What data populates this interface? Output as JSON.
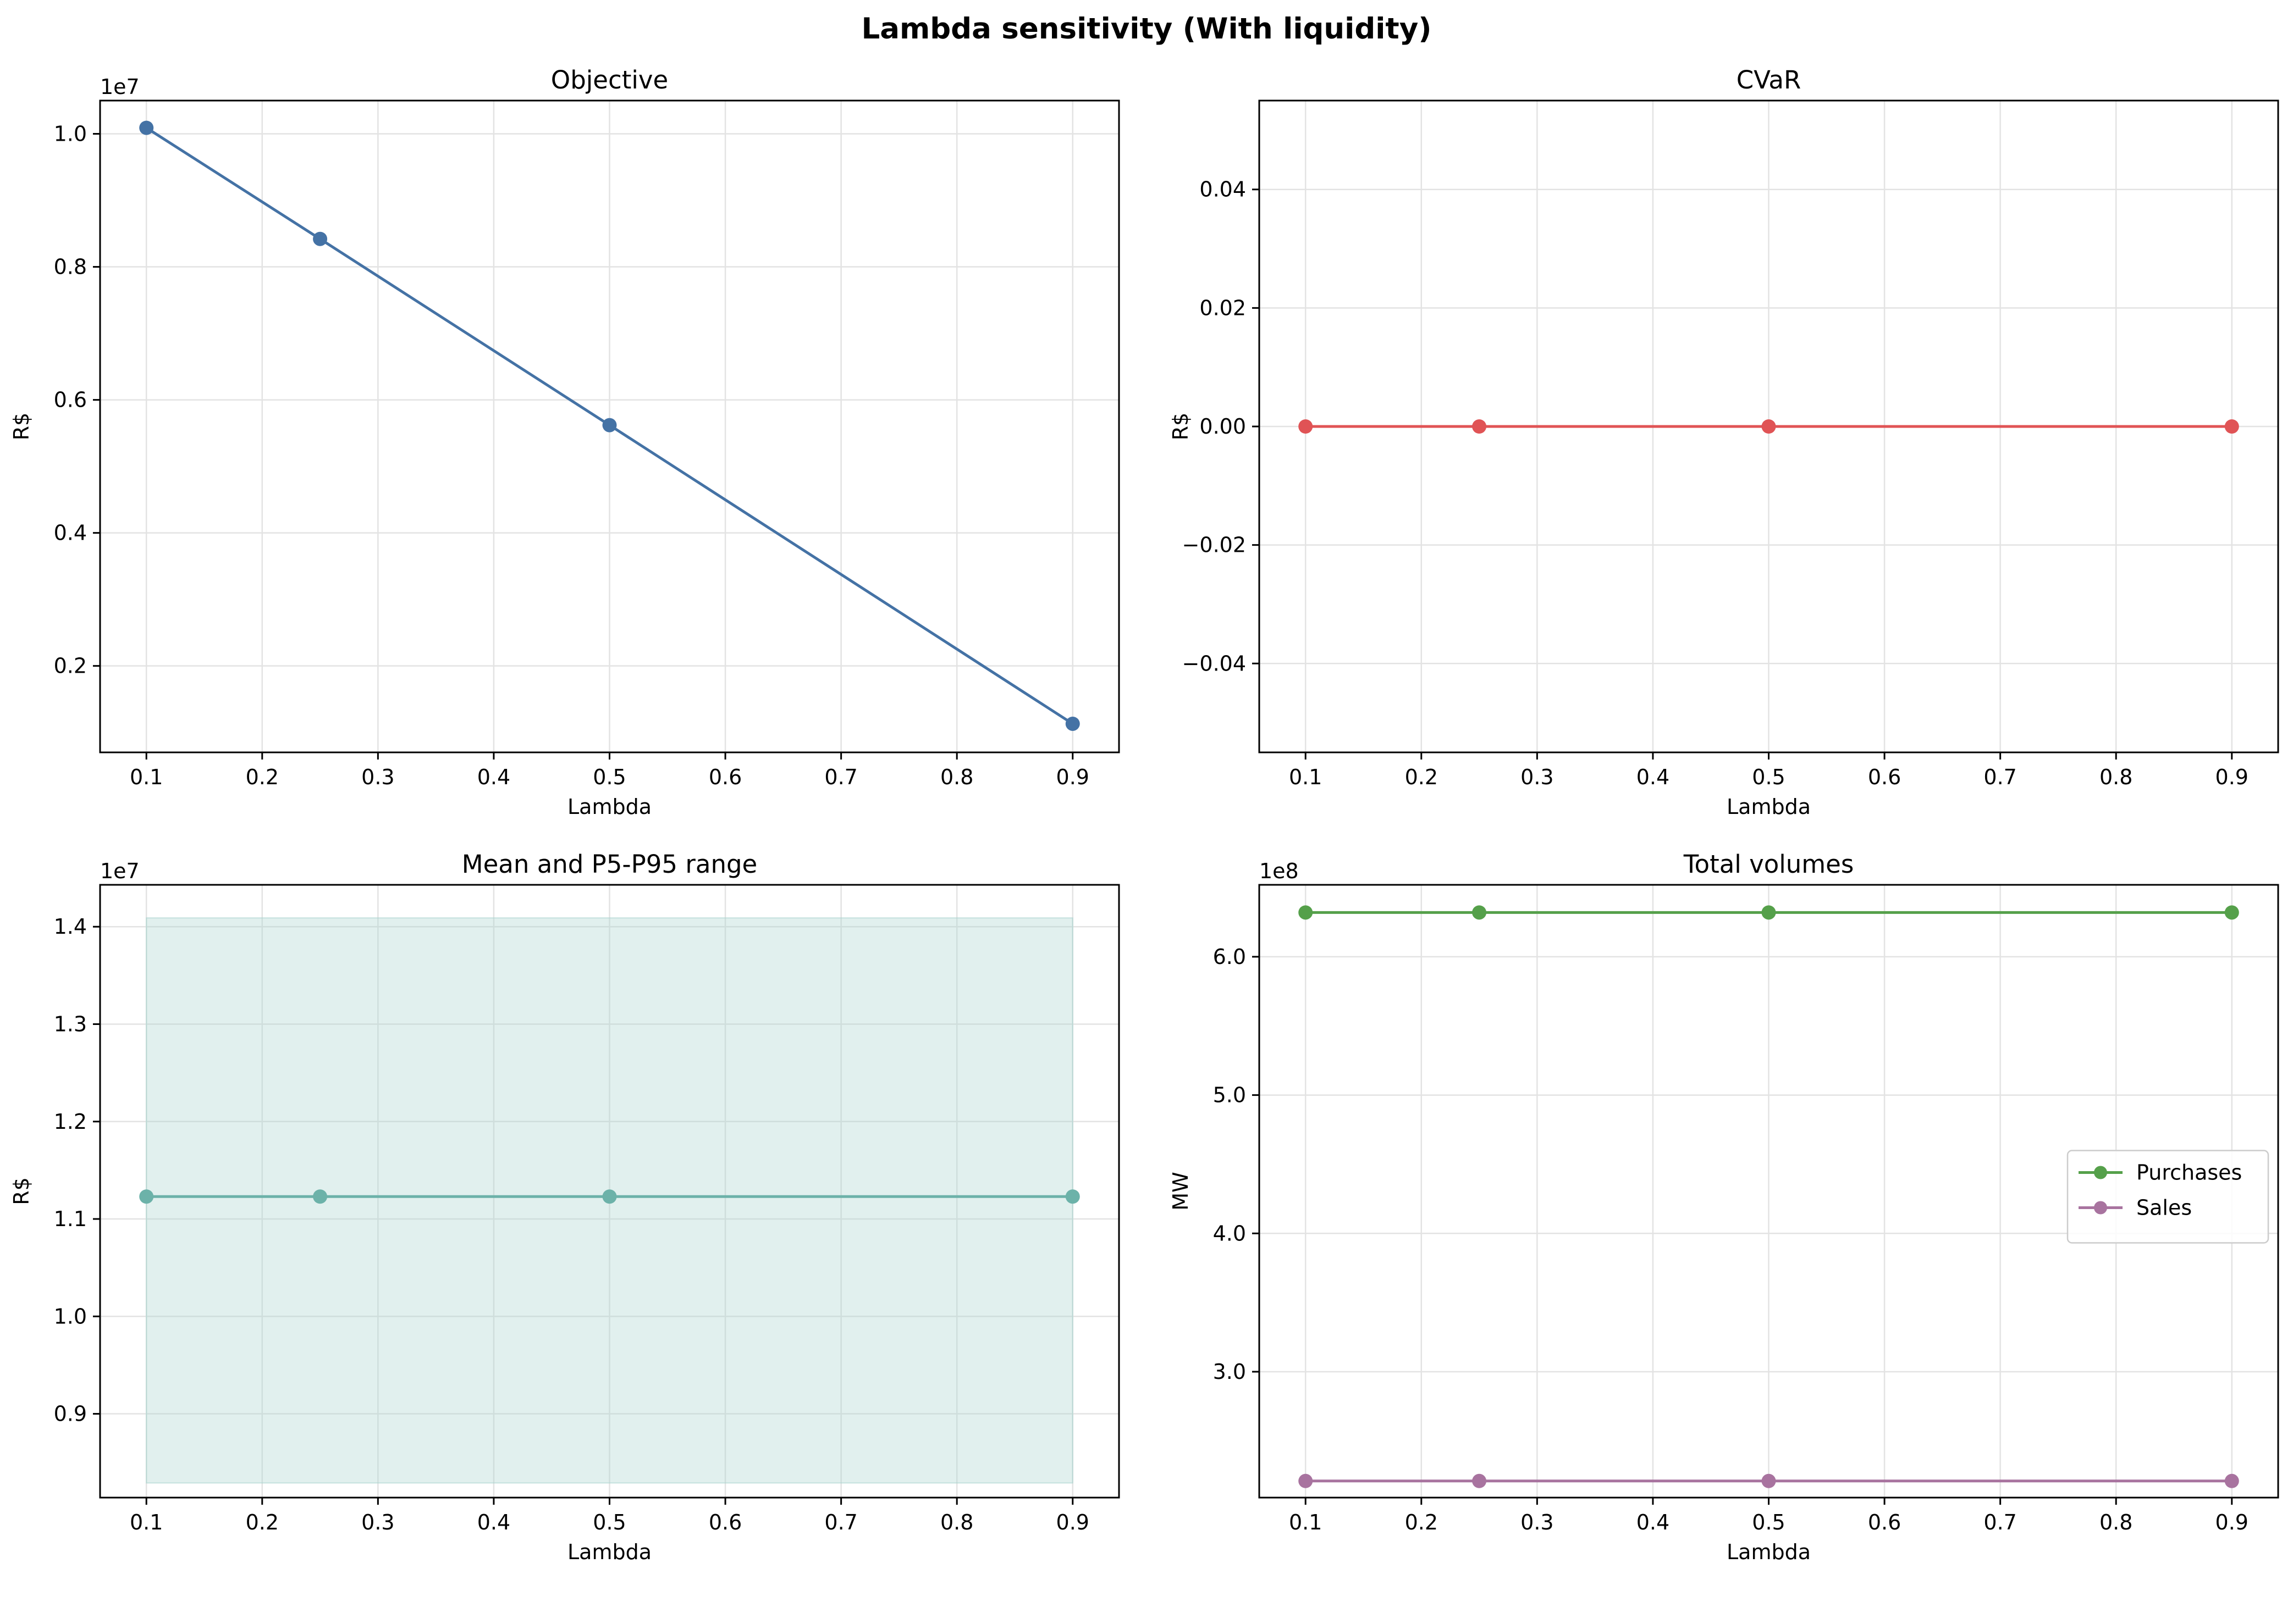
{
  "suptitle": "Lambda sensitivity (With liquidity)",
  "chart_data": [
    {
      "id": "objective",
      "type": "line",
      "title": "Objective",
      "xlabel": "Lambda",
      "ylabel": "R$",
      "offset_text": "1e7",
      "x": [
        0.1,
        0.25,
        0.5,
        0.9
      ],
      "xlim": [
        0.06,
        0.94
      ],
      "ylim": [
        0.07,
        1.05
      ],
      "xticks": [
        0.1,
        0.2,
        0.3,
        0.4,
        0.5,
        0.6,
        0.7,
        0.8,
        0.9
      ],
      "yticks": [
        0.2,
        0.4,
        0.6,
        0.8,
        1.0
      ],
      "grid": true,
      "series": [
        {
          "values": [
            1.009,
            0.842,
            0.562,
            0.113
          ],
          "color": "#4472a5"
        }
      ]
    },
    {
      "id": "cvar",
      "type": "line",
      "title": "CVaR",
      "xlabel": "Lambda",
      "ylabel": "R$",
      "offset_text": "",
      "x": [
        0.1,
        0.25,
        0.5,
        0.9
      ],
      "xlim": [
        0.06,
        0.94
      ],
      "ylim": [
        -0.055,
        0.055
      ],
      "xticks": [
        0.1,
        0.2,
        0.3,
        0.4,
        0.5,
        0.6,
        0.7,
        0.8,
        0.9
      ],
      "yticks": [
        -0.04,
        -0.02,
        0.0,
        0.02,
        0.04
      ],
      "ytick_labels": [
        "−0.04",
        "−0.02",
        "0.00",
        "0.02",
        "0.04"
      ],
      "grid": true,
      "series": [
        {
          "values": [
            0,
            0,
            0,
            0
          ],
          "color": "#e05355"
        }
      ]
    },
    {
      "id": "mean_range",
      "type": "area",
      "title": "Mean and P5-P95 range",
      "xlabel": "Lambda",
      "ylabel": "R$",
      "offset_text": "1e7",
      "x": [
        0.1,
        0.25,
        0.5,
        0.9
      ],
      "xlim": [
        0.06,
        0.94
      ],
      "ylim": [
        0.814,
        1.443
      ],
      "xticks": [
        0.1,
        0.2,
        0.3,
        0.4,
        0.5,
        0.6,
        0.7,
        0.8,
        0.9
      ],
      "yticks": [
        0.9,
        1.0,
        1.1,
        1.2,
        1.3,
        1.4
      ],
      "grid": true,
      "band": {
        "lower": [
          0.829,
          0.829,
          0.829,
          0.829
        ],
        "upper": [
          1.409,
          1.409,
          1.409,
          1.409
        ],
        "color": "#a8d3cf"
      },
      "series": [
        {
          "values": [
            1.123,
            1.123,
            1.123,
            1.123
          ],
          "color": "#6cb2a9"
        }
      ]
    },
    {
      "id": "volumes",
      "type": "line",
      "title": "Total volumes",
      "xlabel": "Lambda",
      "ylabel": "MW",
      "offset_text": "1e8",
      "x": [
        0.1,
        0.25,
        0.5,
        0.9
      ],
      "xlim": [
        0.06,
        0.94
      ],
      "ylim": [
        2.09,
        6.52
      ],
      "xticks": [
        0.1,
        0.2,
        0.3,
        0.4,
        0.5,
        0.6,
        0.7,
        0.8,
        0.9
      ],
      "yticks": [
        3,
        4,
        5,
        6
      ],
      "grid": true,
      "legend": "center-right",
      "series": [
        {
          "name": "Purchases",
          "values": [
            6.32,
            6.32,
            6.32,
            6.32
          ],
          "color": "#55a04a"
        },
        {
          "name": "Sales",
          "values": [
            2.21,
            2.21,
            2.21,
            2.21
          ],
          "color": "#a8739f"
        }
      ]
    }
  ]
}
